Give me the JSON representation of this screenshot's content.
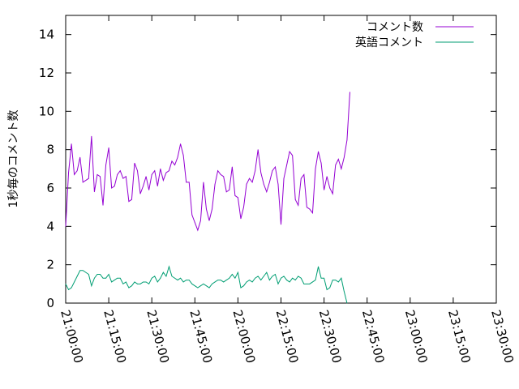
{
  "chart_data": {
    "type": "line",
    "ylabel": "1秒毎のコメント数",
    "ylim": [
      0,
      15
    ],
    "yticks": [
      0,
      2,
      4,
      6,
      8,
      10,
      12,
      14
    ],
    "xlim": [
      "21:00:00",
      "23:30:00"
    ],
    "xticks": [
      "21:00:00",
      "21:15:00",
      "21:30:00",
      "21:45:00",
      "22:00:00",
      "22:15:00",
      "22:30:00",
      "22:45:00",
      "23:00:00",
      "23:15:00",
      "23:30:00"
    ],
    "grid": false,
    "legend_position": "top-right",
    "series": [
      {
        "name": "コメント数",
        "color": "#9400d3",
        "start": "21:00:00",
        "interval_seconds": 60,
        "values": [
          4.0,
          6.8,
          8.3,
          6.7,
          6.9,
          7.6,
          6.3,
          6.4,
          6.5,
          8.7,
          5.8,
          6.7,
          6.6,
          5.1,
          7.2,
          8.1,
          6.0,
          6.1,
          6.7,
          6.9,
          6.5,
          6.6,
          5.3,
          5.4,
          7.3,
          6.9,
          5.7,
          6.1,
          6.6,
          5.9,
          6.7,
          6.9,
          6.1,
          7.0,
          6.4,
          6.8,
          6.9,
          7.4,
          7.2,
          7.6,
          8.3,
          7.7,
          6.3,
          6.3,
          4.6,
          4.2,
          3.8,
          4.3,
          6.3,
          4.9,
          4.3,
          4.9,
          6.2,
          6.9,
          6.7,
          6.6,
          5.8,
          5.9,
          7.1,
          5.6,
          5.5,
          4.4,
          5.0,
          6.2,
          6.5,
          6.3,
          6.9,
          8.0,
          6.8,
          6.2,
          5.8,
          6.3,
          6.9,
          7.1,
          6.2,
          4.1,
          6.5,
          7.2,
          7.9,
          7.7,
          5.4,
          5.1,
          6.5,
          6.7,
          5.0,
          4.9,
          4.7,
          7.0,
          7.9,
          7.3,
          5.9,
          6.6,
          6.0,
          5.7,
          7.2,
          7.5,
          7.0,
          7.6,
          8.5,
          11.0
        ]
      },
      {
        "name": "英語コメント",
        "color": "#009e73",
        "start": "21:00:00",
        "interval_seconds": 60,
        "values": [
          1.0,
          0.7,
          0.8,
          1.1,
          1.4,
          1.7,
          1.7,
          1.6,
          1.5,
          0.9,
          1.3,
          1.5,
          1.5,
          1.3,
          1.3,
          1.5,
          1.1,
          1.2,
          1.3,
          1.3,
          1.0,
          1.1,
          0.8,
          0.9,
          1.1,
          1.0,
          1.0,
          1.1,
          1.1,
          1.0,
          1.3,
          1.4,
          1.1,
          1.3,
          1.6,
          1.4,
          1.9,
          1.4,
          1.3,
          1.2,
          1.3,
          1.1,
          1.2,
          1.2,
          1.0,
          0.9,
          0.8,
          0.9,
          1.0,
          0.9,
          0.8,
          1.0,
          1.1,
          1.2,
          1.2,
          1.1,
          1.2,
          1.3,
          1.5,
          1.3,
          1.6,
          0.8,
          0.9,
          1.1,
          1.2,
          1.1,
          1.3,
          1.4,
          1.2,
          1.4,
          1.6,
          1.2,
          1.4,
          1.5,
          1.0,
          1.3,
          1.4,
          1.2,
          1.1,
          1.3,
          1.2,
          1.4,
          1.3,
          1.0,
          1.0,
          1.0,
          1.1,
          1.2,
          1.9,
          1.3,
          1.3,
          0.7,
          0.8,
          1.2,
          1.2,
          1.1,
          1.3,
          0.6,
          0.0
        ]
      }
    ]
  }
}
